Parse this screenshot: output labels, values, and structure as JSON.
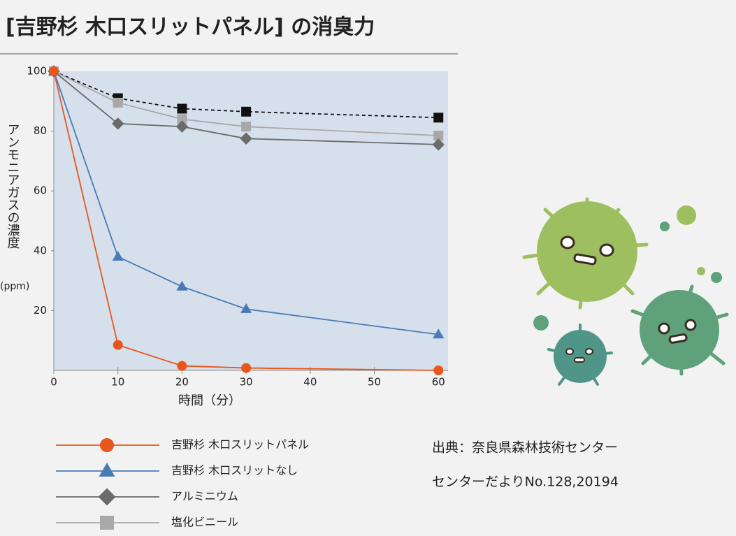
{
  "chart_data": {
    "type": "line",
    "title": "[吉野杉 木口スリットパネル] の消臭力",
    "x_label": "時間（分）",
    "y_label": "アンモニアガスの濃度",
    "y_label_unit": "(ppm)",
    "x": [
      0,
      10,
      20,
      30,
      60
    ],
    "xlim": [
      0,
      61.5
    ],
    "xticks": [
      0,
      10,
      20,
      30,
      40,
      50,
      60
    ],
    "ylim": [
      0,
      100
    ],
    "yticks": [
      20,
      40,
      60,
      80,
      100
    ],
    "grid": false,
    "series": [
      {
        "name": "吉野杉 木口スリットパネル",
        "color": "#e8561c",
        "marker": "circle",
        "values": [
          100,
          8.5,
          1.5,
          0.8,
          0
        ]
      },
      {
        "name": "吉野杉 木口スリットなし",
        "color": "#4a7bb5",
        "marker": "triangle",
        "values": [
          100,
          38,
          28,
          20.5,
          12
        ]
      },
      {
        "name": "アルミニウム",
        "color": "#6b6b6b",
        "marker": "diamond",
        "values": [
          100,
          82.5,
          81.5,
          77.5,
          75.5
        ]
      },
      {
        "name": "塩化ビニール",
        "color": "#a8a8a8",
        "marker": "square",
        "values": [
          100,
          89.5,
          84,
          81.5,
          78.5
        ]
      },
      {
        "color": "#111111",
        "marker": "square",
        "dashed": true,
        "values": [
          100,
          91,
          87.5,
          86.5,
          84.5
        ]
      }
    ],
    "annotations": [
      "出典：奈良県森林技術センター",
      "センターだよりNo.128,20194"
    ]
  }
}
